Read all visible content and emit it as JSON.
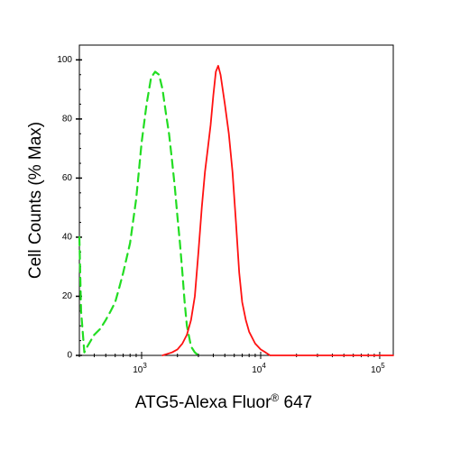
{
  "chart_data": {
    "type": "line",
    "xlabel": "ATG5-Alexa Fluor",
    "xlabel_superscript": "®",
    "xlabel_suffix": " 647",
    "ylabel": "Cell Counts (% Max)",
    "x_scale": "log",
    "xlim": [
      300,
      130000
    ],
    "ylim": [
      0,
      105
    ],
    "x_ticks": [
      {
        "value": 1000,
        "base": "10",
        "exp": "3"
      },
      {
        "value": 10000,
        "base": "10",
        "exp": "4"
      },
      {
        "value": 100000,
        "base": "10",
        "exp": "5"
      }
    ],
    "y_ticks": [
      {
        "value": 0,
        "label": "0"
      },
      {
        "value": 20,
        "label": "20"
      },
      {
        "value": 40,
        "label": "40"
      },
      {
        "value": 60,
        "label": "60"
      },
      {
        "value": 80,
        "label": "80"
      },
      {
        "value": 100,
        "label": "100"
      }
    ],
    "grid": false,
    "legend": "none",
    "series": [
      {
        "style": "dashed",
        "color": "#22dd22",
        "x": [
          300,
          310,
          330,
          350,
          400,
          450,
          500,
          550,
          600,
          650,
          700,
          800,
          900,
          1000,
          1100,
          1200,
          1300,
          1400,
          1500,
          1600,
          1700,
          1800,
          1900,
          2000,
          2100,
          2200,
          2300,
          2400,
          2600,
          2800,
          3000,
          3200
        ],
        "y": [
          40,
          15,
          1,
          3,
          7,
          9,
          12,
          15,
          18,
          23,
          28,
          38,
          53,
          72,
          85,
          94,
          96,
          95,
          90,
          82,
          75,
          66,
          57,
          47,
          38,
          28,
          18,
          10,
          3,
          1,
          0,
          0
        ]
      },
      {
        "style": "solid",
        "color": "#ff1111",
        "x": [
          1500,
          1800,
          2000,
          2200,
          2400,
          2600,
          2800,
          3000,
          3200,
          3400,
          3600,
          3800,
          4000,
          4200,
          4400,
          4600,
          4800,
          5000,
          5400,
          5800,
          6200,
          6600,
          7000,
          7500,
          8000,
          9000,
          10000,
          11000,
          12000,
          15000,
          20000,
          30000,
          60000,
          130000
        ],
        "y": [
          0,
          1,
          2,
          4,
          7,
          12,
          20,
          35,
          50,
          62,
          70,
          78,
          88,
          96,
          98,
          95,
          90,
          85,
          75,
          62,
          45,
          28,
          18,
          12,
          8,
          4,
          2,
          1,
          0,
          0,
          0,
          0,
          0,
          0
        ]
      }
    ]
  }
}
